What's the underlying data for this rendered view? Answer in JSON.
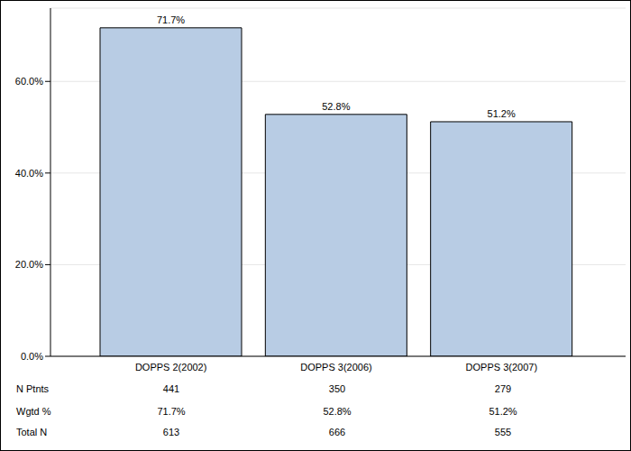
{
  "chart_data": {
    "type": "bar",
    "categories": [
      "DOPPS 2(2002)",
      "DOPPS 3(2006)",
      "DOPPS 3(2007)"
    ],
    "values": [
      71.7,
      52.8,
      51.2
    ],
    "value_labels": [
      "71.7%",
      "52.8%",
      "51.2%"
    ],
    "data_labels": true,
    "color": "#b8cce4",
    "ylim": [
      0,
      76
    ],
    "yticks": [
      {
        "value": 0,
        "label": "0.0%"
      },
      {
        "value": 20,
        "label": "20.0%"
      },
      {
        "value": 40,
        "label": "40.0%"
      },
      {
        "value": 60,
        "label": "60.0%"
      }
    ],
    "grid": true
  },
  "table": {
    "rows": [
      {
        "label": "N Ptnts",
        "cells": [
          "441",
          "350",
          "279"
        ]
      },
      {
        "label": "Wgtd %",
        "cells": [
          "71.7%",
          "52.8%",
          "51.2%"
        ]
      },
      {
        "label": "Total N",
        "cells": [
          "613",
          "666",
          "555"
        ]
      }
    ]
  }
}
